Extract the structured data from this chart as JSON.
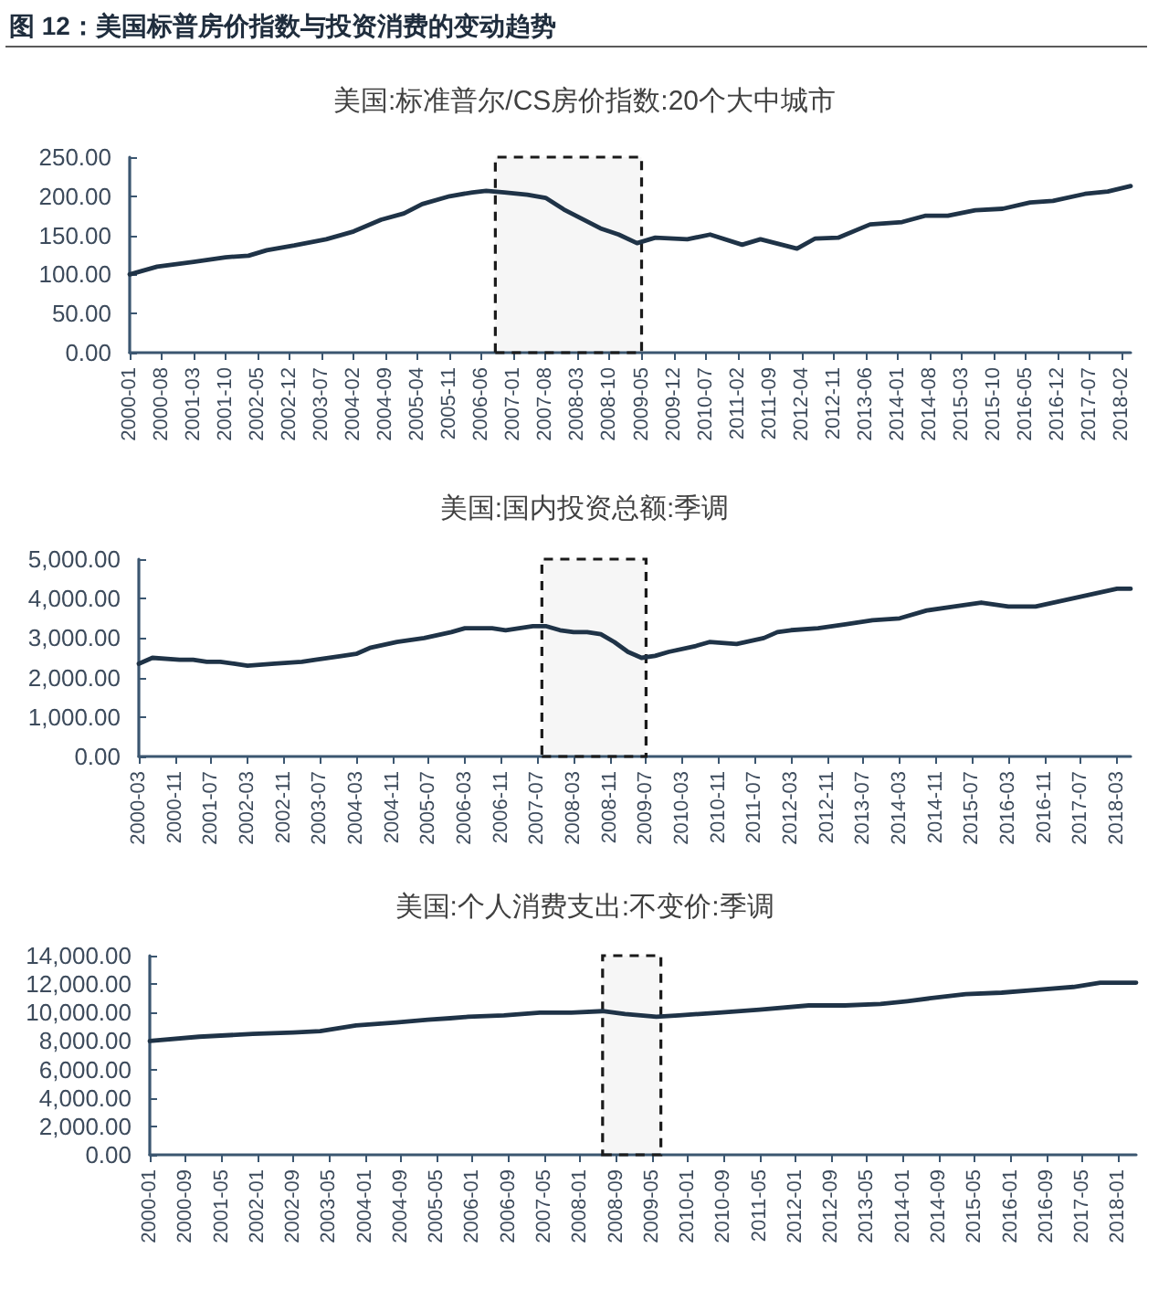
{
  "chart_data": [
    {
      "type": "other",
      "title": "图 12：美国标普房价指数与投资消费的变动趋势"
    },
    {
      "type": "line",
      "title": "美国:标准普尔/CS房价指数:20个大中城市",
      "color": "#1f3347",
      "x": [
        "2000-01",
        "2000-07",
        "2001-03",
        "2001-10",
        "2002-03",
        "2002-07",
        "2003-01",
        "2003-08",
        "2004-02",
        "2004-08",
        "2005-01",
        "2005-05",
        "2005-11",
        "2006-04",
        "2006-07",
        "2006-11",
        "2007-04",
        "2007-08",
        "2007-12",
        "2008-04",
        "2008-08",
        "2008-12",
        "2009-04",
        "2009-08",
        "2010-03",
        "2010-08",
        "2011-03",
        "2011-07",
        "2012-03",
        "2012-07",
        "2012-12",
        "2013-07",
        "2014-02",
        "2014-07",
        "2014-12",
        "2015-06",
        "2015-12",
        "2016-06",
        "2016-11",
        "2017-06",
        "2017-11",
        "2018-04"
      ],
      "values": [
        100,
        110,
        116,
        122,
        124,
        131,
        137,
        145,
        155,
        170,
        178,
        190,
        200,
        205,
        207,
        205,
        202,
        198,
        183,
        171,
        159,
        151,
        140,
        147,
        145,
        151,
        138,
        145,
        133,
        146,
        147,
        164,
        167,
        175,
        175,
        182,
        184,
        192,
        194,
        203,
        206,
        213
      ],
      "xlim": [
        "2000-01",
        "2018-04"
      ],
      "xticks": [
        "2000-01",
        "2000-08",
        "2001-03",
        "2001-10",
        "2002-05",
        "2002-12",
        "2003-07",
        "2004-02",
        "2004-09",
        "2005-04",
        "2005-11",
        "2006-06",
        "2007-01",
        "2007-08",
        "2008-03",
        "2008-10",
        "2009-05",
        "2009-12",
        "2010-07",
        "2011-02",
        "2011-09",
        "2012-04",
        "2012-11",
        "2013-06",
        "2014-01",
        "2014-08",
        "2015-03",
        "2015-10",
        "2016-05",
        "2016-12",
        "2017-07",
        "2018-02"
      ],
      "ylim": [
        0,
        250
      ],
      "yticks": [
        {
          "value": 0,
          "label": "0.00"
        },
        {
          "value": 50,
          "label": "50.00"
        },
        {
          "value": 100,
          "label": "100.00"
        },
        {
          "value": 150,
          "label": "150.00"
        },
        {
          "value": 200,
          "label": "200.00"
        },
        {
          "value": 250,
          "label": "250.00"
        }
      ],
      "bands": [
        {
          "axis": "x",
          "from": "2006-09",
          "to": "2009-05",
          "color": "#1a1a1a"
        }
      ]
    },
    {
      "type": "line",
      "title": "美国:国内投资总额:季调",
      "color": "#1f3347",
      "x": [
        "2000-03",
        "2000-06",
        "2000-12",
        "2001-03",
        "2001-06",
        "2001-09",
        "2001-12",
        "2002-03",
        "2002-09",
        "2003-03",
        "2003-06",
        "2003-12",
        "2004-03",
        "2004-06",
        "2004-12",
        "2005-06",
        "2005-12",
        "2006-03",
        "2006-09",
        "2006-12",
        "2007-06",
        "2007-09",
        "2007-12",
        "2008-03",
        "2008-06",
        "2008-09",
        "2008-12",
        "2009-03",
        "2009-06",
        "2009-09",
        "2009-12",
        "2010-06",
        "2010-09",
        "2011-03",
        "2011-09",
        "2011-12",
        "2012-03",
        "2012-09",
        "2013-03",
        "2013-06",
        "2013-09",
        "2014-03",
        "2014-09",
        "2015-03",
        "2015-09",
        "2016-03",
        "2016-09",
        "2017-03",
        "2017-09",
        "2018-03",
        "2018-06"
      ],
      "values": [
        2350,
        2500,
        2450,
        2450,
        2400,
        2400,
        2350,
        2300,
        2350,
        2400,
        2450,
        2550,
        2600,
        2750,
        2900,
        3000,
        3150,
        3250,
        3250,
        3200,
        3300,
        3300,
        3200,
        3150,
        3150,
        3100,
        2900,
        2650,
        2500,
        2550,
        2650,
        2800,
        2900,
        2850,
        3000,
        3150,
        3200,
        3250,
        3350,
        3400,
        3450,
        3500,
        3700,
        3800,
        3900,
        3800,
        3800,
        3950,
        4100,
        4250,
        4250
      ],
      "xlim": [
        "2000-03",
        "2018-06"
      ],
      "xticks": [
        "2000-03",
        "2000-11",
        "2001-07",
        "2002-03",
        "2002-11",
        "2003-07",
        "2004-03",
        "2004-11",
        "2005-07",
        "2006-03",
        "2006-11",
        "2007-07",
        "2008-03",
        "2008-11",
        "2009-07",
        "2010-03",
        "2010-11",
        "2011-07",
        "2012-03",
        "2012-11",
        "2013-07",
        "2014-03",
        "2014-11",
        "2015-07",
        "2016-03",
        "2016-11",
        "2017-07",
        "2018-03"
      ],
      "ylim": [
        0,
        5000
      ],
      "yticks": [
        {
          "value": 0,
          "label": "0.00"
        },
        {
          "value": 1000,
          "label": "1,000.00"
        },
        {
          "value": 2000,
          "label": "2,000.00"
        },
        {
          "value": 3000,
          "label": "3,000.00"
        },
        {
          "value": 4000,
          "label": "4,000.00"
        },
        {
          "value": 5000,
          "label": "5,000.00"
        }
      ],
      "bands": [
        {
          "axis": "x",
          "from": "2007-08",
          "to": "2009-07",
          "color": "#1a1a1a"
        }
      ]
    },
    {
      "type": "line",
      "title": "美国:个人消费支出:不变价:季调",
      "color": "#1f3347",
      "x": [
        "2000-01",
        "2000-12",
        "2001-12",
        "2002-09",
        "2003-03",
        "2003-11",
        "2004-08",
        "2005-03",
        "2005-08",
        "2005-12",
        "2006-08",
        "2007-04",
        "2007-11",
        "2008-06",
        "2008-11",
        "2009-06",
        "2009-11",
        "2010-08",
        "2011-05",
        "2012-04",
        "2012-12",
        "2013-08",
        "2014-02",
        "2014-07",
        "2015-03",
        "2015-11",
        "2016-07",
        "2017-03",
        "2017-09",
        "2018-01",
        "2018-05"
      ],
      "values": [
        8000,
        8300,
        8500,
        8600,
        8700,
        9100,
        9300,
        9500,
        9600,
        9700,
        9800,
        10000,
        10000,
        10100,
        9900,
        9700,
        9800,
        10000,
        10200,
        10500,
        10500,
        10600,
        10800,
        11000,
        11300,
        11400,
        11600,
        11800,
        12100,
        12100,
        12100
      ],
      "xlim": [
        "2000-01",
        "2018-05"
      ],
      "xticks": [
        "2000-01",
        "2000-09",
        "2001-05",
        "2002-01",
        "2002-09",
        "2003-05",
        "2004-01",
        "2004-09",
        "2005-05",
        "2006-01",
        "2006-09",
        "2007-05",
        "2008-01",
        "2008-09",
        "2009-05",
        "2010-01",
        "2010-09",
        "2011-05",
        "2012-01",
        "2012-09",
        "2013-05",
        "2014-01",
        "2014-09",
        "2015-05",
        "2016-01",
        "2016-09",
        "2017-05",
        "2018-01"
      ],
      "ylim": [
        0,
        14000
      ],
      "yticks": [
        {
          "value": 0,
          "label": "0.00"
        },
        {
          "value": 2000,
          "label": "2,000.00"
        },
        {
          "value": 4000,
          "label": "4,000.00"
        },
        {
          "value": 6000,
          "label": "6,000.00"
        },
        {
          "value": 8000,
          "label": "8,000.00"
        },
        {
          "value": 10000,
          "label": "10,000.00"
        },
        {
          "value": 12000,
          "label": "12,000.00"
        },
        {
          "value": 14000,
          "label": "14,000.00"
        }
      ],
      "bands": [
        {
          "axis": "x",
          "from": "2008-06",
          "to": "2009-07",
          "color": "#1a1a1a"
        }
      ]
    }
  ]
}
